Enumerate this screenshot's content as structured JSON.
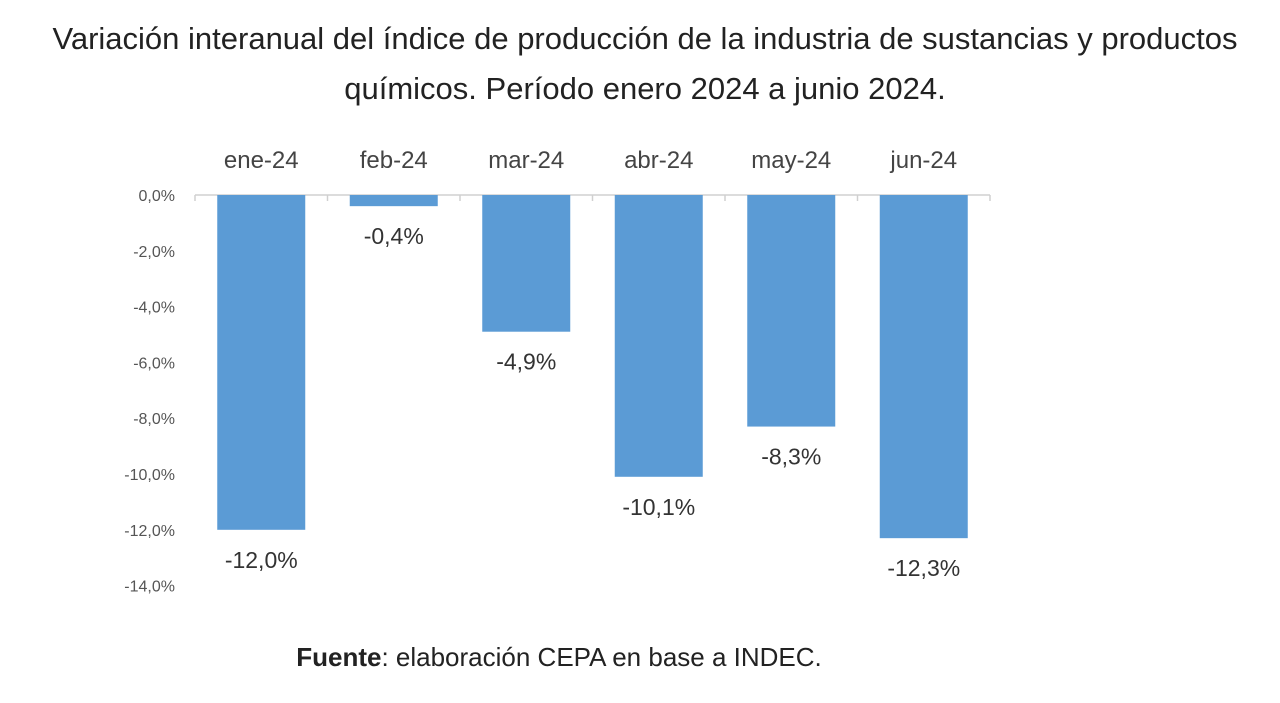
{
  "chart_data": {
    "type": "bar",
    "title": "Variación interanual del índice de producción de la industria de sustancias y productos químicos. Período enero 2024 a junio 2024.",
    "categories": [
      "ene-24",
      "feb-24",
      "mar-24",
      "abr-24",
      "may-24",
      "jun-24"
    ],
    "values": [
      -12.0,
      -0.4,
      -4.9,
      -10.1,
      -8.3,
      -12.3
    ],
    "value_labels": [
      "-12,0%",
      "-0,4%",
      "-4,9%",
      "-10,1%",
      "-8,3%",
      "-12,3%"
    ],
    "y_ticks": [
      0,
      -2,
      -4,
      -6,
      -8,
      -10,
      -12,
      -14
    ],
    "y_tick_labels": [
      "0,0%",
      "-2,0%",
      "-4,0%",
      "-6,0%",
      "-8,0%",
      "-10,0%",
      "-12,0%",
      "-14,0%"
    ],
    "ylim": [
      -14,
      0
    ],
    "xlabel": "",
    "ylabel": "",
    "category_axis_position": "top",
    "legend": "none",
    "grid": false,
    "bar_color": "#5B9BD5"
  },
  "source": {
    "label": "Fuente",
    "text": ": elaboración CEPA en base a INDEC."
  }
}
